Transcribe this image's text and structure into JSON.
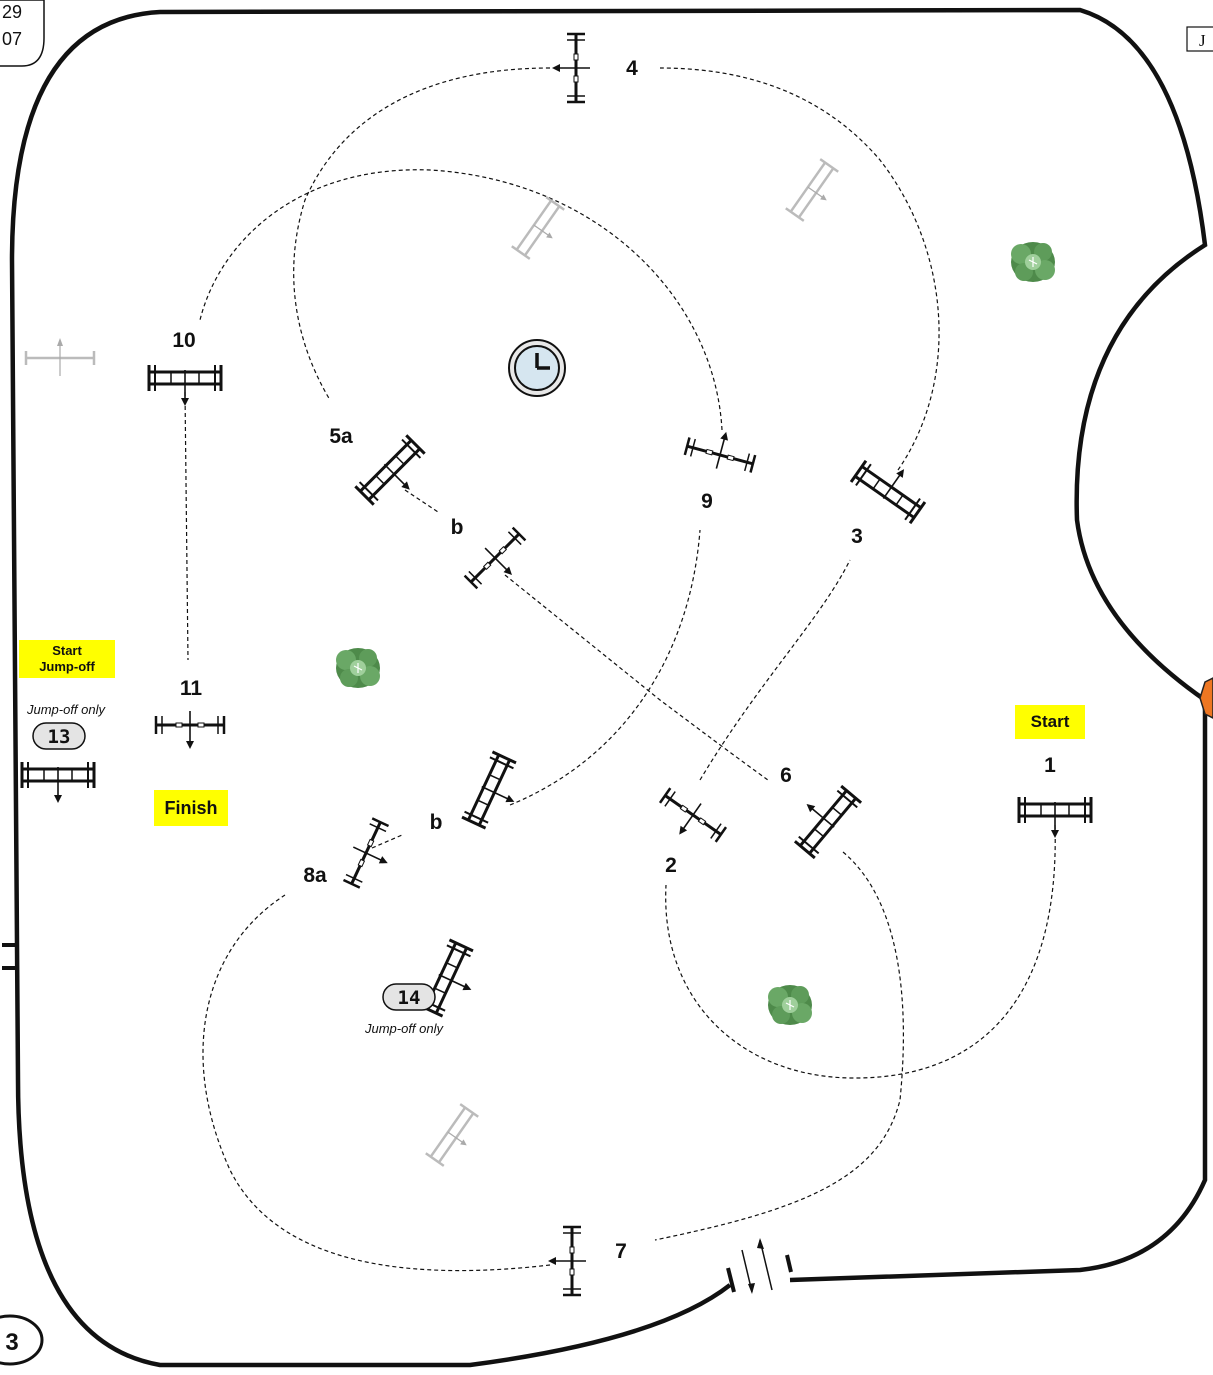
{
  "corner_top": [
    "29",
    "07"
  ],
  "corner_right": "J",
  "corner_bottom": "3",
  "labels": {
    "start": "Start",
    "start_jumpoff": [
      "Start",
      "Jump-off"
    ],
    "finish": "Finish",
    "jumpoff_only": "Jump-off only"
  },
  "obstacles": [
    {
      "id": "1",
      "label": "1"
    },
    {
      "id": "2",
      "label": "2"
    },
    {
      "id": "3",
      "label": "3"
    },
    {
      "id": "4",
      "label": "4"
    },
    {
      "id": "5a",
      "label": "5a"
    },
    {
      "id": "5b",
      "label": "b"
    },
    {
      "id": "6",
      "label": "6"
    },
    {
      "id": "7",
      "label": "7"
    },
    {
      "id": "8a",
      "label": "8a"
    },
    {
      "id": "8b",
      "label": "b"
    },
    {
      "id": "9",
      "label": "9"
    },
    {
      "id": "10",
      "label": "10"
    },
    {
      "id": "11",
      "label": "11"
    },
    {
      "id": "13",
      "label": "13"
    },
    {
      "id": "14",
      "label": "14"
    }
  ],
  "colors": {
    "arena_line": "#111111",
    "course_path": "#111111",
    "faded_fence": "#bbbbbb",
    "tree": "#5a9a55",
    "highlight": "#ffff00",
    "marker": "#ee7722"
  },
  "icons": [
    "clock-icon",
    "tree-icon",
    "fence-icon",
    "gate-icon"
  ]
}
